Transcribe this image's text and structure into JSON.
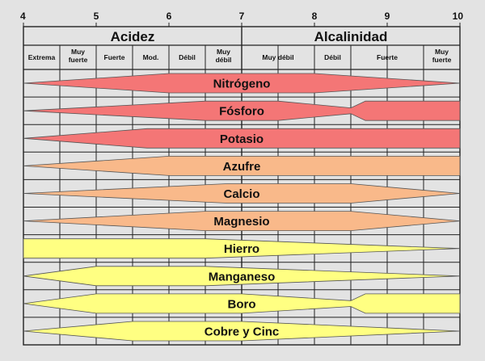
{
  "ph_scale": {
    "min": 4,
    "max": 10,
    "tick_labels": [
      "4",
      "5",
      "6",
      "7",
      "8",
      "9",
      "10"
    ]
  },
  "groups": [
    {
      "label": "Acidez",
      "from": 4,
      "to": 7
    },
    {
      "label": "Alcalinidad",
      "from": 7,
      "to": 10
    }
  ],
  "subcategories": [
    {
      "lines": [
        "Extrema"
      ],
      "from": 4.0,
      "to": 4.5
    },
    {
      "lines": [
        "Muy",
        "fuerte"
      ],
      "from": 4.5,
      "to": 5.0
    },
    {
      "lines": [
        "Fuerte"
      ],
      "from": 5.0,
      "to": 5.5
    },
    {
      "lines": [
        "Mod."
      ],
      "from": 5.5,
      "to": 6.0
    },
    {
      "lines": [
        "Débil"
      ],
      "from": 6.0,
      "to": 6.5
    },
    {
      "lines": [
        "Muy",
        "débil"
      ],
      "from": 6.5,
      "to": 7.0
    },
    {
      "lines": [
        "Muy débil"
      ],
      "from": 7.0,
      "to": 8.0
    },
    {
      "lines": [
        "Débil"
      ],
      "from": 8.0,
      "to": 8.5
    },
    {
      "lines": [
        "Fuerte"
      ],
      "from": 8.5,
      "to": 9.5
    },
    {
      "lines": [
        "Muy",
        "fuerte"
      ],
      "from": 9.5,
      "to": 10.0
    }
  ],
  "colors": {
    "red": "#f47676",
    "orange": "#f9b98a",
    "yellow": "#ffff82",
    "outline": "#555555",
    "grid": "#222222",
    "background": "#e3e3e3"
  },
  "nutrients": [
    {
      "name": "Nitrógeno",
      "color": "red",
      "profile": [
        [
          4.0,
          0.0
        ],
        [
          6.0,
          1.0
        ],
        [
          8.0,
          1.0
        ],
        [
          10.0,
          0.0
        ]
      ]
    },
    {
      "name": "Fósforo",
      "color": "red",
      "profile": [
        [
          4.0,
          0.0
        ],
        [
          6.5,
          1.0
        ],
        [
          7.5,
          1.0
        ],
        [
          8.5,
          0.3
        ],
        [
          8.7,
          1.0
        ],
        [
          10.0,
          1.0
        ]
      ]
    },
    {
      "name": "Potasio",
      "color": "red",
      "profile": [
        [
          4.0,
          0.0
        ],
        [
          5.7,
          1.0
        ],
        [
          10.0,
          1.0
        ]
      ]
    },
    {
      "name": "Azufre",
      "color": "orange",
      "profile": [
        [
          4.0,
          0.0
        ],
        [
          6.0,
          1.0
        ],
        [
          10.0,
          1.0
        ]
      ]
    },
    {
      "name": "Calcio",
      "color": "orange",
      "profile": [
        [
          4.0,
          0.0
        ],
        [
          6.8,
          1.0
        ],
        [
          8.5,
          1.0
        ],
        [
          10.0,
          0.0
        ]
      ]
    },
    {
      "name": "Magnesio",
      "color": "orange",
      "profile": [
        [
          4.0,
          0.0
        ],
        [
          6.5,
          1.0
        ],
        [
          8.5,
          1.0
        ],
        [
          10.0,
          0.0
        ]
      ]
    },
    {
      "name": "Hierro",
      "color": "yellow",
      "profile": [
        [
          4.0,
          1.0
        ],
        [
          6.5,
          1.0
        ],
        [
          10.0,
          0.0
        ]
      ]
    },
    {
      "name": "Manganeso",
      "color": "yellow",
      "profile": [
        [
          4.0,
          0.0
        ],
        [
          5.0,
          1.0
        ],
        [
          6.5,
          1.0
        ],
        [
          10.0,
          0.0
        ]
      ]
    },
    {
      "name": "Boro",
      "color": "yellow",
      "profile": [
        [
          4.0,
          0.0
        ],
        [
          5.0,
          1.0
        ],
        [
          7.0,
          1.0
        ],
        [
          8.5,
          0.3
        ],
        [
          8.7,
          1.0
        ],
        [
          10.0,
          1.0
        ]
      ]
    },
    {
      "name": "Cobre y Cinc",
      "color": "yellow",
      "profile": [
        [
          4.0,
          0.0
        ],
        [
          5.5,
          1.0
        ],
        [
          7.0,
          1.0
        ],
        [
          10.0,
          0.0
        ]
      ]
    }
  ]
}
